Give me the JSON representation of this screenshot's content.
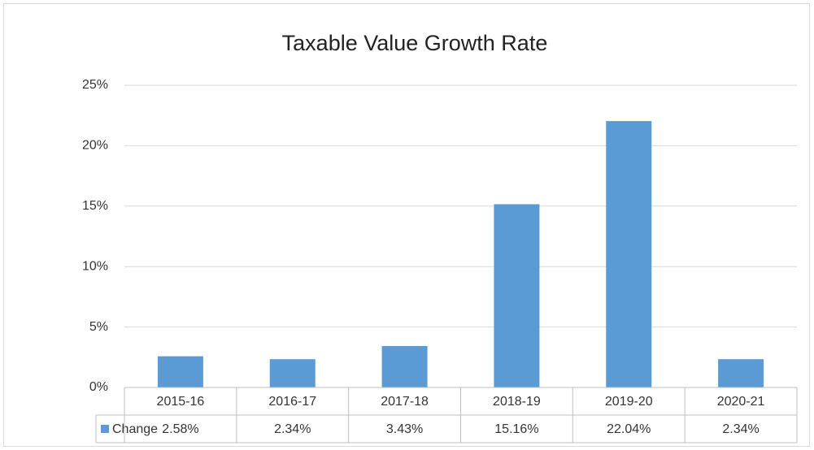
{
  "chart_data": {
    "type": "bar",
    "title": "Taxable Value Growth Rate",
    "categories": [
      "2015-16",
      "2016-17",
      "2017-18",
      "2018-19",
      "2019-20",
      "2020-21"
    ],
    "series": [
      {
        "name": "Change",
        "color": "#5b9bd5",
        "values": [
          2.58,
          2.34,
          3.43,
          15.16,
          22.04,
          2.34
        ],
        "value_labels": [
          "2.58%",
          "2.34%",
          "3.43%",
          "15.16%",
          "22.04%",
          "2.34%"
        ]
      }
    ],
    "ylim": [
      0,
      25
    ],
    "yticks": [
      {
        "value": 0,
        "label": "0%"
      },
      {
        "value": 5,
        "label": "5%"
      },
      {
        "value": 10,
        "label": "10%"
      },
      {
        "value": 15,
        "label": "15%"
      },
      {
        "value": 20,
        "label": "20%"
      },
      {
        "value": 25,
        "label": "25%"
      }
    ],
    "grid": true,
    "data_table": true
  }
}
